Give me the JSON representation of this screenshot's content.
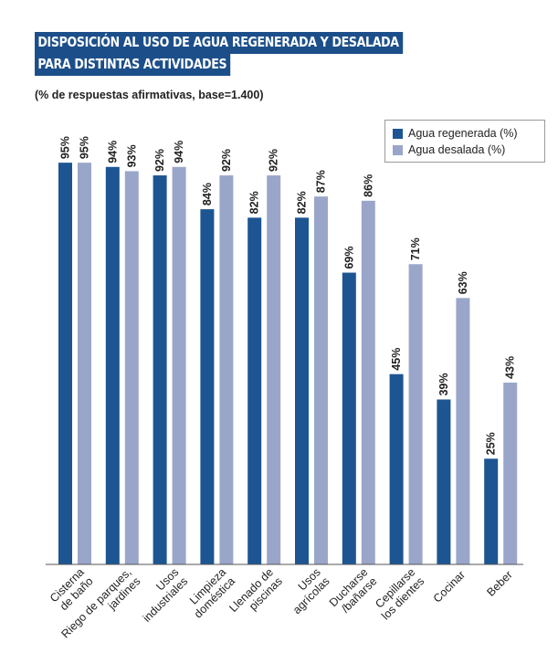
{
  "chart_data": {
    "type": "bar",
    "title_lines": [
      "DISPOSICIÓN AL USO DE AGUA REGENERADA Y DESALADA",
      "PARA DISTINTAS ACTIVIDADES"
    ],
    "subtitle": "(% de respuestas afirmativas, base=1.400)",
    "categories": [
      [
        "Cisterna",
        "de baño"
      ],
      [
        "Riego de parques,",
        "jardines"
      ],
      [
        "Usos",
        "industriales"
      ],
      [
        "Limpieza",
        "doméstica"
      ],
      [
        "Llenado de",
        "piscinas"
      ],
      [
        "Usos",
        "agrícolas"
      ],
      [
        "Ducharse",
        "/bañarse"
      ],
      [
        "Cepillarse",
        "los dientes"
      ],
      [
        "Cocinar"
      ],
      [
        "Beber"
      ]
    ],
    "series": [
      {
        "name": "Agua regenerada (%)",
        "color": "#1c5592",
        "values": [
          95,
          94,
          92,
          84,
          82,
          82,
          69,
          45,
          39,
          25
        ]
      },
      {
        "name": "Agua desalada (%)",
        "color": "#9aa6c9",
        "values": [
          95,
          93,
          94,
          92,
          92,
          87,
          86,
          71,
          63,
          43
        ]
      }
    ],
    "value_suffix": "%",
    "ylim": [
      0,
      100
    ],
    "legend_position": "top-right",
    "grid": false
  }
}
